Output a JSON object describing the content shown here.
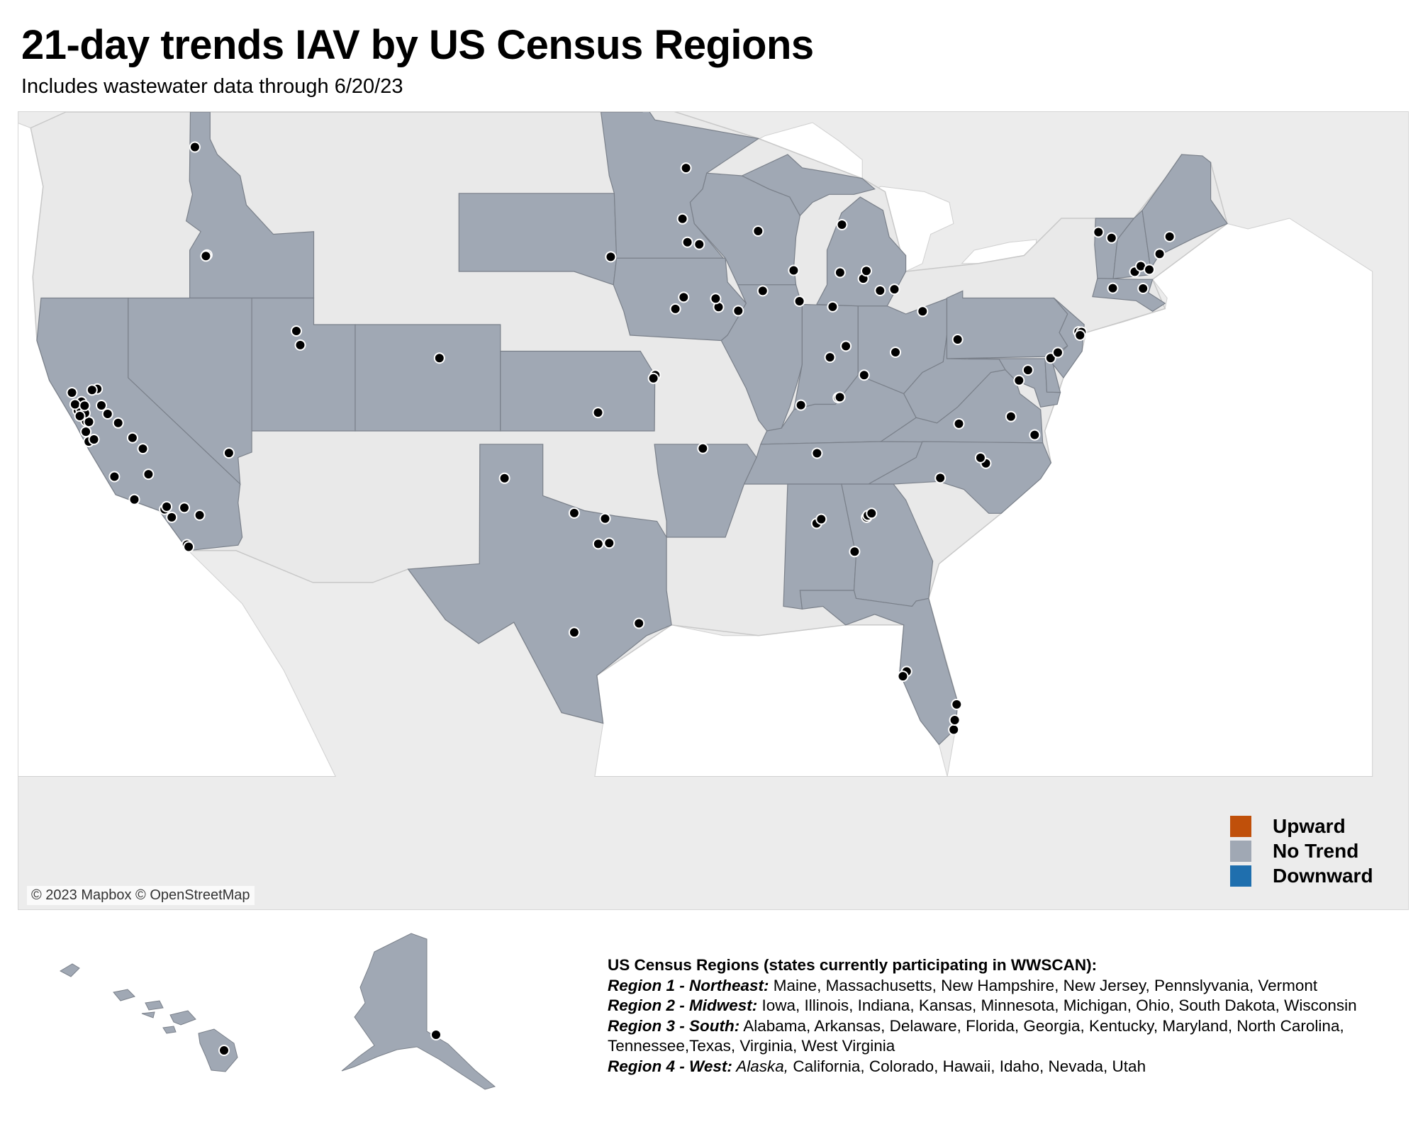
{
  "title": "21-day trends IAV by US Census Regions",
  "subtitle": "Includes wastewater data through 6/20/23",
  "attribution": "© 2023 Mapbox © OpenStreetMap",
  "colors": {
    "upward": "#c0500a",
    "no_trend": "#a0a8b4",
    "downward": "#1f6fae",
    "basemap_land": "#ececec",
    "basemap_border": "#c8c8c8",
    "water": "#ffffff",
    "site": "#000000"
  },
  "legend": {
    "items": [
      {
        "label": "Upward",
        "color": "#c0500a"
      },
      {
        "label": "No Trend",
        "color": "#a0a8b4"
      },
      {
        "label": "Downward",
        "color": "#1f6fae"
      }
    ]
  },
  "regions_note": {
    "heading": "US Census Regions (states currently participating in WWSCAN):",
    "lines": [
      {
        "label": "Region 1 - Northeast:",
        "italic_part": "",
        "text": " Maine, Massachusetts, New Hampshire, New Jersey, Pennslyvania, Vermont"
      },
      {
        "label": "Region 2 - Midwest:",
        "italic_part": "",
        "text": " Iowa, Illinois, Indiana, Kansas, Minnesota, Michigan, Ohio, South Dakota, Wisconsin"
      },
      {
        "label": "Region 3 - South:",
        "italic_part": "",
        "text": " Alabama, Arkansas, Delaware, Florida, Georgia, Kentucky, Maryland, North Carolina,"
      },
      {
        "label": "",
        "italic_part": "",
        "text": "Tennessee,Texas, Virginia, West Virginia"
      },
      {
        "label": "Region 4 - West:",
        "italic_part": " Alaska,",
        "text": " California, Colorado, Hawaii, Idaho, Nevada, Utah"
      }
    ]
  },
  "map_data": {
    "participating_states_trend": {
      "Maine": "No Trend",
      "Massachusetts": "No Trend",
      "New Hampshire": "No Trend",
      "New Jersey": "No Trend",
      "Pennsylvania": "No Trend",
      "Vermont": "No Trend",
      "Iowa": "No Trend",
      "Illinois": "No Trend",
      "Indiana": "No Trend",
      "Kansas": "No Trend",
      "Minnesota": "No Trend",
      "Michigan": "No Trend",
      "Ohio": "No Trend",
      "South Dakota": "No Trend",
      "Wisconsin": "No Trend",
      "Alabama": "No Trend",
      "Arkansas": "No Trend",
      "Delaware": "No Trend",
      "Florida": "No Trend",
      "Georgia": "No Trend",
      "Kentucky": "No Trend",
      "Maryland": "No Trend",
      "North Carolina": "No Trend",
      "Tennessee": "No Trend",
      "Texas": "No Trend",
      "Virginia": "No Trend",
      "West Virginia": "No Trend",
      "Alaska": "No Trend",
      "California": "No Trend",
      "Colorado": "No Trend",
      "Hawaii": "No Trend",
      "Idaho": "No Trend",
      "Nevada": "No Trend",
      "Utah": "No Trend"
    },
    "sites": [
      {
        "lon": -116.78,
        "lat": 47.68
      },
      {
        "lon": -116.2,
        "lat": 43.62
      },
      {
        "lon": -116.25,
        "lat": 43.58
      },
      {
        "lon": -111.89,
        "lat": 40.76
      },
      {
        "lon": -111.7,
        "lat": 40.23
      },
      {
        "lon": -104.99,
        "lat": 39.74
      },
      {
        "lon": -115.14,
        "lat": 36.17
      },
      {
        "lon": -122.42,
        "lat": 37.77
      },
      {
        "lon": -122.27,
        "lat": 37.8
      },
      {
        "lon": -122.03,
        "lat": 37.37
      },
      {
        "lon": -121.89,
        "lat": 37.34
      },
      {
        "lon": -122.08,
        "lat": 37.67
      },
      {
        "lon": -122.33,
        "lat": 37.56
      },
      {
        "lon": -121.49,
        "lat": 38.58
      },
      {
        "lon": -121.74,
        "lat": 38.54
      },
      {
        "lon": -122.71,
        "lat": 38.44
      },
      {
        "lon": -122.25,
        "lat": 38.1
      },
      {
        "lon": -121.29,
        "lat": 37.96
      },
      {
        "lon": -120.99,
        "lat": 37.64
      },
      {
        "lon": -121.9,
        "lat": 36.6
      },
      {
        "lon": -121.65,
        "lat": 36.68
      },
      {
        "lon": -120.48,
        "lat": 37.3
      },
      {
        "lon": -119.79,
        "lat": 36.74
      },
      {
        "lon": -119.29,
        "lat": 36.33
      },
      {
        "lon": -120.66,
        "lat": 35.28
      },
      {
        "lon": -119.02,
        "lat": 35.37
      },
      {
        "lon": -119.7,
        "lat": 34.42
      },
      {
        "lon": -118.24,
        "lat": 34.05
      },
      {
        "lon": -118.14,
        "lat": 34.15
      },
      {
        "lon": -117.29,
        "lat": 34.11
      },
      {
        "lon": -117.16,
        "lat": 32.72
      },
      {
        "lon": -117.08,
        "lat": 32.64
      },
      {
        "lon": -117.9,
        "lat": 33.75
      },
      {
        "lon": -116.55,
        "lat": 33.83
      },
      {
        "lon": -122.04,
        "lat": 36.97
      },
      {
        "lon": -122.56,
        "lat": 38.0
      },
      {
        "lon": -122.1,
        "lat": 37.95
      },
      {
        "lon": -93.1,
        "lat": 46.89
      },
      {
        "lon": -93.27,
        "lat": 44.98
      },
      {
        "lon": -92.46,
        "lat": 44.02
      },
      {
        "lon": -93.03,
        "lat": 44.1
      },
      {
        "lon": -96.73,
        "lat": 43.55
      },
      {
        "lon": -89.62,
        "lat": 44.52
      },
      {
        "lon": -87.91,
        "lat": 43.04
      },
      {
        "lon": -93.61,
        "lat": 41.59
      },
      {
        "lon": -91.53,
        "lat": 41.66
      },
      {
        "lon": -91.67,
        "lat": 41.98
      },
      {
        "lon": -90.58,
        "lat": 41.52
      },
      {
        "lon": -93.21,
        "lat": 42.03
      },
      {
        "lon": -87.63,
        "lat": 41.88
      },
      {
        "lon": -89.4,
        "lat": 42.27
      },
      {
        "lon": -85.58,
        "lat": 44.76
      },
      {
        "lon": -84.55,
        "lat": 42.73
      },
      {
        "lon": -85.67,
        "lat": 42.96
      },
      {
        "lon": -83.05,
        "lat": 42.33
      },
      {
        "lon": -83.74,
        "lat": 42.28
      },
      {
        "lon": -84.4,
        "lat": 43.02
      },
      {
        "lon": -86.16,
        "lat": 39.77
      },
      {
        "lon": -86.03,
        "lat": 41.67
      },
      {
        "lon": -85.39,
        "lat": 40.19
      },
      {
        "lon": -87.56,
        "lat": 37.97
      },
      {
        "lon": -85.76,
        "lat": 38.25
      },
      {
        "lon": -85.68,
        "lat": 38.27
      },
      {
        "lon": -83.0,
        "lat": 39.96
      },
      {
        "lon": -81.69,
        "lat": 41.5
      },
      {
        "lon": -84.51,
        "lat": 39.1
      },
      {
        "lon": -80.0,
        "lat": 40.44
      },
      {
        "lon": -76.61,
        "lat": 39.29
      },
      {
        "lon": -75.52,
        "lat": 39.74
      },
      {
        "lon": -75.17,
        "lat": 39.95
      },
      {
        "lon": -74.17,
        "lat": 40.73
      },
      {
        "lon": -74.03,
        "lat": 40.72
      },
      {
        "lon": -74.1,
        "lat": 40.6
      },
      {
        "lon": -77.04,
        "lat": 38.9
      },
      {
        "lon": -76.29,
        "lat": 36.85
      },
      {
        "lon": -77.43,
        "lat": 37.54
      },
      {
        "lon": -79.94,
        "lat": 37.27
      },
      {
        "lon": -78.64,
        "lat": 35.78
      },
      {
        "lon": -78.9,
        "lat": 35.99
      },
      {
        "lon": -80.84,
        "lat": 35.23
      },
      {
        "lon": -86.78,
        "lat": 36.16
      },
      {
        "lon": -84.39,
        "lat": 33.75
      },
      {
        "lon": -84.33,
        "lat": 33.82
      },
      {
        "lon": -84.15,
        "lat": 33.9
      },
      {
        "lon": -86.8,
        "lat": 33.52
      },
      {
        "lon": -86.58,
        "lat": 33.68
      },
      {
        "lon": -84.97,
        "lat": 32.46
      },
      {
        "lon": -82.46,
        "lat": 27.95
      },
      {
        "lon": -82.64,
        "lat": 27.77
      },
      {
        "lon": -80.19,
        "lat": 25.76
      },
      {
        "lon": -80.14,
        "lat": 26.12
      },
      {
        "lon": -80.05,
        "lat": 26.71
      },
      {
        "lon": -92.29,
        "lat": 36.34
      },
      {
        "lon": -94.58,
        "lat": 39.1
      },
      {
        "lon": -94.67,
        "lat": 38.98
      },
      {
        "lon": -97.34,
        "lat": 37.69
      },
      {
        "lon": -101.85,
        "lat": 35.22
      },
      {
        "lon": -97.0,
        "lat": 33.7
      },
      {
        "lon": -98.49,
        "lat": 33.91
      },
      {
        "lon": -97.33,
        "lat": 32.75
      },
      {
        "lon": -96.8,
        "lat": 32.78
      },
      {
        "lon": -95.37,
        "lat": 29.76
      },
      {
        "lon": -98.49,
        "lat": 29.42
      },
      {
        "lon": -73.21,
        "lat": 44.48
      },
      {
        "lon": -72.58,
        "lat": 44.26
      },
      {
        "lon": -71.46,
        "lat": 42.99
      },
      {
        "lon": -71.06,
        "lat": 42.36
      },
      {
        "lon": -70.26,
        "lat": 43.66
      },
      {
        "lon": -69.78,
        "lat": 44.31
      },
      {
        "lon": -72.52,
        "lat": 42.37
      },
      {
        "lon": -71.17,
        "lat": 43.2
      },
      {
        "lon": -70.76,
        "lat": 43.07
      }
    ],
    "inset_sites": [
      {
        "place": "Alaska",
        "lon": -149.9,
        "lat": 61.22
      },
      {
        "place": "Hawaii",
        "lon": -155.08,
        "lat": 19.72
      }
    ]
  }
}
